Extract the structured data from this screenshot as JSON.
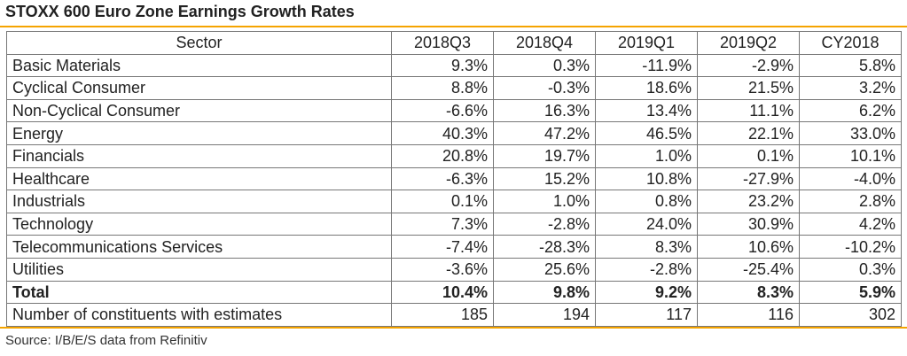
{
  "title": "STOXX 600 Euro Zone Earnings Growth Rates",
  "source": "Source: I/B/E/S data from Refinitiv",
  "colors": {
    "accent_rule": "#f5a400",
    "grid": "#777777"
  },
  "chart_data": {
    "type": "table",
    "title": "STOXX 600 Euro Zone Earnings Growth Rates",
    "columns": [
      "Sector",
      "2018Q3",
      "2018Q4",
      "2019Q1",
      "2019Q2",
      "CY2018"
    ],
    "rows": [
      {
        "label": "Basic Materials",
        "values": [
          "9.3%",
          "0.3%",
          "-11.9%",
          "-2.9%",
          "5.8%"
        ]
      },
      {
        "label": "Cyclical Consumer",
        "values": [
          "8.8%",
          "-0.3%",
          "18.6%",
          "21.5%",
          "3.2%"
        ]
      },
      {
        "label": "Non-Cyclical Consumer",
        "values": [
          "-6.6%",
          "16.3%",
          "13.4%",
          "11.1%",
          "6.2%"
        ]
      },
      {
        "label": "Energy",
        "values": [
          "40.3%",
          "47.2%",
          "46.5%",
          "22.1%",
          "33.0%"
        ]
      },
      {
        "label": "Financials",
        "values": [
          "20.8%",
          "19.7%",
          "1.0%",
          "0.1%",
          "10.1%"
        ]
      },
      {
        "label": "Healthcare",
        "values": [
          "-6.3%",
          "15.2%",
          "10.8%",
          "-27.9%",
          "-4.0%"
        ]
      },
      {
        "label": "Industrials",
        "values": [
          "0.1%",
          "1.0%",
          "0.8%",
          "23.2%",
          "2.8%"
        ]
      },
      {
        "label": "Technology",
        "values": [
          "7.3%",
          "-2.8%",
          "24.0%",
          "30.9%",
          "4.2%"
        ]
      },
      {
        "label": "Telecommunications Services",
        "values": [
          "-7.4%",
          "-28.3%",
          "8.3%",
          "10.6%",
          "-10.2%"
        ]
      },
      {
        "label": "Utilities",
        "values": [
          "-3.6%",
          "25.6%",
          "-2.8%",
          "-25.4%",
          "0.3%"
        ]
      },
      {
        "label": "Total",
        "values": [
          "10.4%",
          "9.8%",
          "9.2%",
          "8.3%",
          "5.9%"
        ],
        "bold": true
      },
      {
        "label": "Number of constituents with estimates",
        "values": [
          "185",
          "194",
          "117",
          "116",
          "302"
        ]
      }
    ]
  }
}
